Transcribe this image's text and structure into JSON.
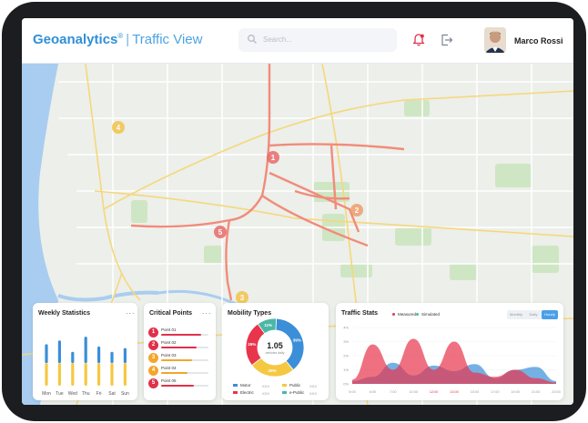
{
  "header": {
    "brand": "Geoanalytics",
    "brand_mark": "®",
    "separator": "|",
    "subtitle": "Traffic View",
    "search_placeholder": "Search...",
    "user_name": "Marco Rossi",
    "icons": [
      "search-icon",
      "bell-icon",
      "logout-icon"
    ]
  },
  "map": {
    "markers": [
      {
        "label": "1",
        "color": "#e76b6b"
      },
      {
        "label": "2",
        "color": "#ef9d6b"
      },
      {
        "label": "3",
        "color": "#f3c24a"
      },
      {
        "label": "4",
        "color": "#f3c24a"
      },
      {
        "label": "5",
        "color": "#e76b6b"
      }
    ]
  },
  "weekly": {
    "title": "Weekly Statistics",
    "menu": "...",
    "chart_data": {
      "type": "bar",
      "categories": [
        "Mon",
        "Tue",
        "Wed",
        "Thu",
        "Fri",
        "Sat",
        "Sun"
      ],
      "series": [
        {
          "color": "#3a8fd8",
          "values": [
            25,
            30,
            15,
            35,
            22,
            15,
            20
          ]
        },
        {
          "color": "#f5c842",
          "values": [
            30,
            30,
            30,
            30,
            30,
            30,
            30
          ]
        }
      ]
    }
  },
  "critical": {
    "title": "Critical Points",
    "menu": "...",
    "items": [
      {
        "num": "1",
        "label": "Point 01",
        "color": "#e0314b",
        "fill": 0.85
      },
      {
        "num": "2",
        "label": "Point 02",
        "color": "#e0314b",
        "fill": 0.75
      },
      {
        "num": "3",
        "label": "Point 03",
        "color": "#f3a62b",
        "fill": 0.65
      },
      {
        "num": "4",
        "label": "Point 04",
        "color": "#f3a62b",
        "fill": 0.55
      },
      {
        "num": "5",
        "label": "Point 05",
        "color": "#e0314b",
        "fill": 0.7
      }
    ]
  },
  "mobility": {
    "title": "Mobility Types",
    "center_value": "1.05",
    "center_label": "vehicles daily",
    "chart_data": {
      "type": "pie",
      "slices": [
        {
          "label": "Motor",
          "value": 39,
          "color": "#3a8fd8"
        },
        {
          "label": "Public",
          "value": 26,
          "color": "#f5c842"
        },
        {
          "label": "Electric",
          "value": 26,
          "color": "#e8354b"
        },
        {
          "label": "e-Public",
          "value": 11,
          "color": "#4ab8a6"
        }
      ],
      "slice_labels": [
        "39%",
        "26%",
        "26%",
        "11%"
      ]
    },
    "legend_values": [
      "XXX",
      "XXX",
      "XXX",
      "XXX"
    ]
  },
  "traffic": {
    "title": "Traffic Stats",
    "legend": [
      {
        "label": "Measured",
        "color": "#e8354b"
      },
      {
        "label": "Simulated",
        "color": "#4ab8a6"
      }
    ],
    "segments": [
      "Monthly",
      "Daily",
      "Hourly"
    ],
    "active_segment": "Hourly",
    "chart_data": {
      "type": "area",
      "y_ticks": [
        "4%",
        "3%",
        "2%",
        "1%",
        "0%"
      ],
      "x_ticks": [
        "5:00",
        "6:00",
        "7:00",
        "10:00",
        "12:00",
        "13:00",
        "15:00",
        "17:00",
        "19:00",
        "21:00",
        "23:00"
      ],
      "series": [
        {
          "color": "#e8354b",
          "values": [
            0.3,
            2.8,
            1.0,
            3.2,
            1.0,
            3.0,
            0.8,
            0.5,
            1.0,
            0.4,
            0.1
          ]
        },
        {
          "color": "#3a8fd8",
          "values": [
            0.2,
            0.5,
            1.5,
            0.6,
            1.3,
            0.9,
            1.4,
            0.4,
            1.0,
            1.2,
            0.2
          ]
        }
      ]
    }
  }
}
